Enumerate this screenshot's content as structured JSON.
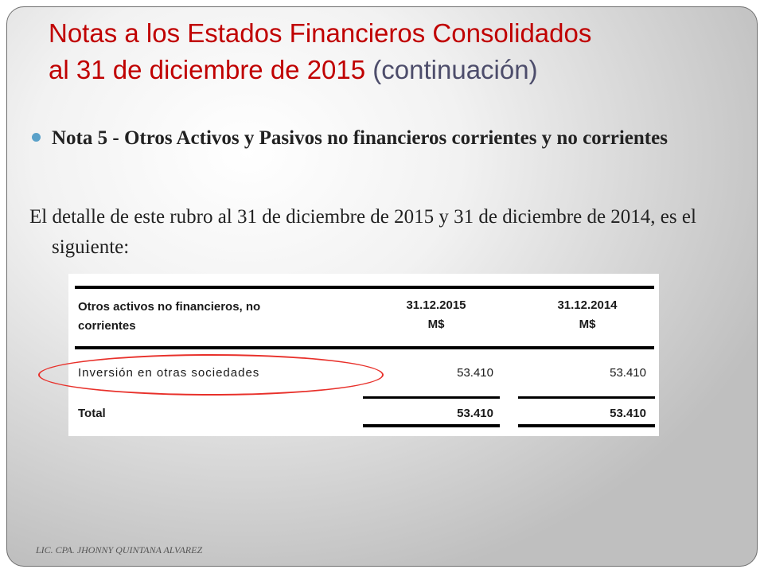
{
  "title": {
    "line1": "Notas a los Estados Financieros Consolidados",
    "line2": "al 31 de diciembre de 2015",
    "continuation": "(continuación)"
  },
  "bullet": {
    "text": "Nota 5 - Otros Activos y Pasivos no financieros corrientes y no corrientes"
  },
  "paragraph": "El detalle de este rubro al 31 de diciembre de 2015 y 31 de diciembre de 2014, es el siguiente:",
  "table": {
    "header_line1": "Otros activos no financieros, no",
    "header_line2": "corrientes",
    "col1_date": "31.12.2015",
    "col1_unit": "M$",
    "col2_date": "31.12.2014",
    "col2_unit": "M$",
    "rows": [
      {
        "label": "Inversión en otras sociedades",
        "v2015": "53.410",
        "v2014": "53.410"
      }
    ],
    "total": {
      "label": "Total",
      "v2015": "53.410",
      "v2014": "53.410"
    }
  },
  "highlight_color": "#e8302a",
  "footer": "LIC. CPA. JHONNY QUINTANA ALVAREZ"
}
